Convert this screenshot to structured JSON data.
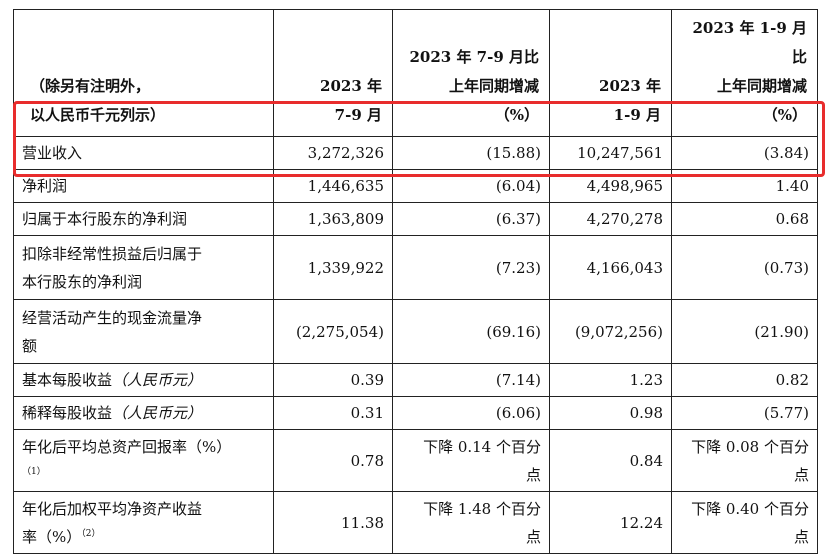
{
  "header": {
    "unit_note": [
      "（除另有注明外，",
      "以人民币千元列示）"
    ],
    "columns": [
      [
        "2023 年",
        "7-9 月"
      ],
      [
        "2023 年 7-9 月比",
        "上年同期增减",
        "（%）"
      ],
      [
        "2023 年",
        "1-9 月"
      ],
      [
        "2023 年 1-9 月比",
        "上年同期增减",
        "（%）"
      ]
    ]
  },
  "rows": [
    {
      "label": [
        "营业收入"
      ],
      "values": [
        "3,272,326",
        "(15.88)",
        "10,247,561",
        "(3.84)"
      ]
    },
    {
      "label": [
        "净利润"
      ],
      "values": [
        "1,446,635",
        "(6.04)",
        "4,498,965",
        "1.40"
      ]
    },
    {
      "label": [
        "归属于本行股东的净利润"
      ],
      "values": [
        "1,363,809",
        "(6.37)",
        "4,270,278",
        "0.68"
      ]
    },
    {
      "label": [
        "扣除非经常性损益后归属于",
        "本行股东的净利润"
      ],
      "values": [
        "1,339,922",
        "(7.23)",
        "4,166,043",
        "(0.73)"
      ]
    },
    {
      "label": [
        "经营活动产生的现金流量净",
        "额"
      ],
      "values": [
        "(2,275,054)",
        "(69.16)",
        "(9,072,256)",
        "(21.90)"
      ]
    },
    {
      "label": [
        "基本每股收益",
        "（人民币元）"
      ],
      "values": [
        "0.39",
        "(7.14)",
        "1.23",
        "0.82"
      ]
    },
    {
      "label": [
        "稀释每股收益",
        "（人民币元）"
      ],
      "values": [
        "0.31",
        "(6.06)",
        "0.98",
        "(5.77)"
      ]
    },
    {
      "label": [
        "年化后平均总资产回报率（%）",
        "（1）"
      ],
      "values": [
        "0.78",
        "下降 0.14 个百分",
        "点",
        "0.84",
        "下降 0.08 个百分",
        "点"
      ]
    },
    {
      "label": [
        "年化后加权平均净资产收益",
        "率（%）",
        "（2）"
      ],
      "values": [
        "11.38",
        "下降 1.48 个百分",
        "点",
        "12.24",
        "下降 0.40 个百分",
        "点"
      ]
    }
  ],
  "highlight_color": "#e82c2c"
}
